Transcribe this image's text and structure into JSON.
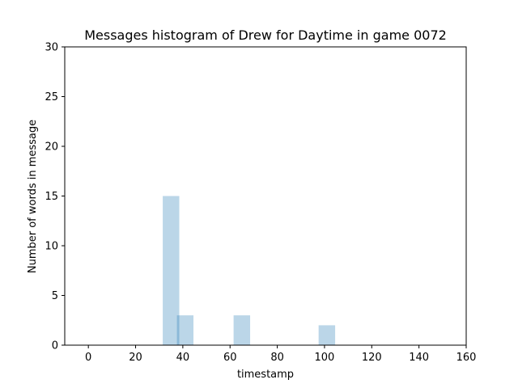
{
  "chart_data": {
    "type": "bar",
    "title": "Messages histogram of Drew for Daytime in game 0072",
    "xlabel": "timestamp",
    "ylabel": "Number of words in message",
    "xlim": [
      -10,
      160
    ],
    "ylim": [
      0,
      30
    ],
    "xticks": [
      0,
      20,
      40,
      60,
      80,
      100,
      120,
      140,
      160
    ],
    "yticks": [
      0,
      5,
      10,
      15,
      20,
      25,
      30
    ],
    "bar_color": "#1f77b4",
    "bar_opacity": 0.3,
    "bars": [
      {
        "x_start": 31.5,
        "x_end": 38.5,
        "value": 15
      },
      {
        "x_start": 37.5,
        "x_end": 44.5,
        "value": 3
      },
      {
        "x_start": 61.5,
        "x_end": 68.5,
        "value": 3
      },
      {
        "x_start": 97.5,
        "x_end": 104.5,
        "value": 2
      }
    ],
    "grid": false
  }
}
